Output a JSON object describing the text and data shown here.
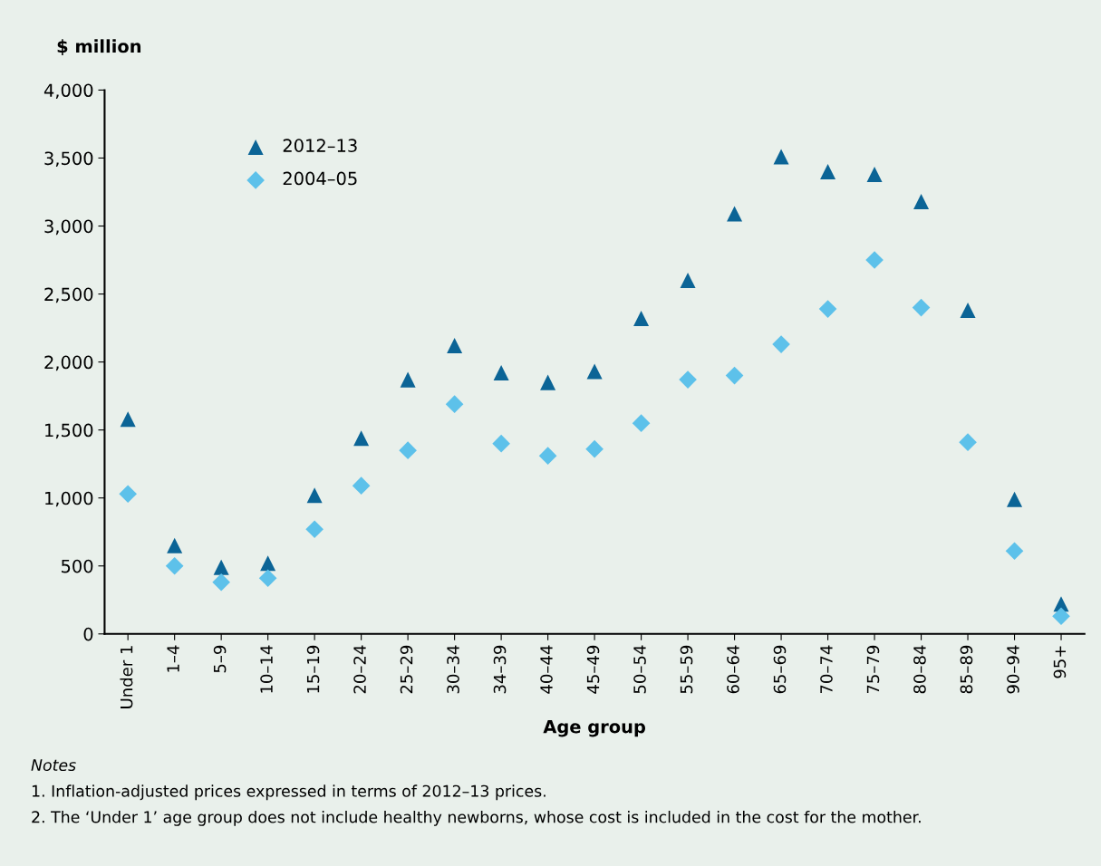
{
  "chart_data": {
    "type": "scatter",
    "ylabel": "$ million",
    "xlabel": "Age group",
    "categories": [
      "Under 1",
      "1–4",
      "5–9",
      "10–14",
      "15–19",
      "20–24",
      "25–29",
      "30–34",
      "34–39",
      "40–44",
      "45–49",
      "50–54",
      "55–59",
      "60–64",
      "65–69",
      "70–74",
      "75–79",
      "80–84",
      "85–89",
      "90–94",
      "95+"
    ],
    "series": [
      {
        "name": "2012–13",
        "color": "#0b6496",
        "marker": "triangle",
        "values": [
          1580,
          650,
          490,
          520,
          1020,
          1440,
          1870,
          2120,
          1920,
          1850,
          1930,
          2320,
          2600,
          3090,
          3510,
          3400,
          3380,
          3180,
          2380,
          990,
          220
        ]
      },
      {
        "name": "2004–05",
        "color": "#5dc1ea",
        "marker": "diamond",
        "values": [
          1030,
          500,
          380,
          410,
          770,
          1090,
          1350,
          1690,
          1400,
          1310,
          1360,
          1550,
          1870,
          1900,
          2130,
          2390,
          2750,
          2400,
          1410,
          610,
          130
        ]
      }
    ],
    "ylim": [
      0,
      4000
    ],
    "yticks": [
      0,
      500,
      {
        "value": 1000,
        "label": "1,000"
      },
      {
        "value": 1500,
        "label": "1,500"
      },
      {
        "value": 2000,
        "label": "2,000"
      },
      {
        "value": 2500,
        "label": "2,500"
      },
      {
        "value": 3000,
        "label": "3,000"
      },
      {
        "value": 3500,
        "label": "3,500"
      },
      {
        "value": 4000,
        "label": "4,000"
      }
    ],
    "grid": false,
    "legend": "top left",
    "annotations": [
      "Notes",
      "1. Inflation-adjusted prices expressed in terms of 2012–13 prices.",
      "2. The ‘Under 1’ age group does not include healthy newborns, whose cost is included in the cost for the mother."
    ]
  }
}
